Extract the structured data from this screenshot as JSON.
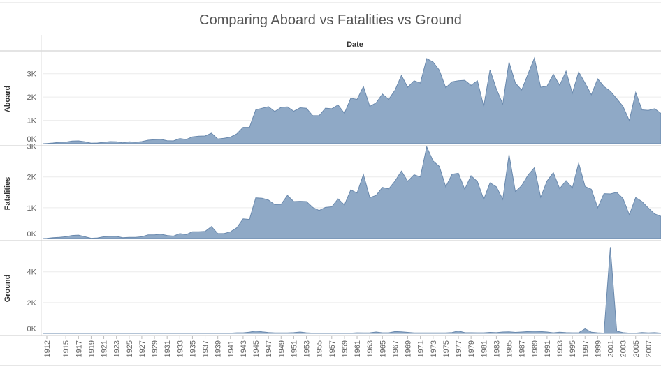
{
  "page": {
    "title": "Comparing Aboard vs Fatalities vs Ground"
  },
  "colors": {
    "area_fill": "#8fa9c6",
    "area_stroke": "#6a89ad",
    "grid": "#ececec",
    "divider": "#c8c8c8"
  },
  "chart_data": {
    "type": "area",
    "title": "Comparing Aboard vs Fatalities vs Ground",
    "column_header": "Date",
    "x_tick_labels": [
      "1912",
      "1915",
      "1917",
      "1919",
      "1921",
      "1923",
      "1925",
      "1927",
      "1929",
      "1931",
      "1933",
      "1935",
      "1937",
      "1939",
      "1941",
      "1943",
      "1945",
      "1947",
      "1949",
      "1951",
      "1953",
      "1955",
      "1957",
      "1959",
      "1961",
      "1963",
      "1965",
      "1967",
      "1969",
      "1971",
      "1973",
      "1975",
      "1977",
      "1979",
      "1981",
      "1983",
      "1985",
      "1987",
      "1989",
      "1991",
      "1993",
      "1995",
      "1997",
      "1999",
      "2001",
      "2003",
      "2005",
      "2007"
    ],
    "x_range": [
      1912,
      2009
    ],
    "legend": "none",
    "grid": "horizontal",
    "panels": [
      {
        "name": "Aboard",
        "ylim": [
          0,
          3800
        ],
        "y_ticks": [
          {
            "value": 0,
            "label": "0K"
          },
          {
            "value": 1000,
            "label": "1K"
          },
          {
            "value": 2000,
            "label": "2K"
          },
          {
            "value": 3000,
            "label": "3K"
          }
        ],
        "x": [
          1908,
          1912,
          1913,
          1914,
          1915,
          1916,
          1917,
          1918,
          1919,
          1920,
          1921,
          1922,
          1923,
          1924,
          1925,
          1926,
          1927,
          1928,
          1929,
          1930,
          1931,
          1932,
          1933,
          1934,
          1935,
          1936,
          1937,
          1938,
          1939,
          1940,
          1941,
          1942,
          1943,
          1944,
          1945,
          1946,
          1947,
          1948,
          1949,
          1950,
          1951,
          1952,
          1953,
          1954,
          1955,
          1956,
          1957,
          1958,
          1959,
          1960,
          1961,
          1962,
          1963,
          1964,
          1965,
          1966,
          1967,
          1968,
          1969,
          1970,
          1971,
          1972,
          1973,
          1974,
          1975,
          1976,
          1977,
          1978,
          1979,
          1980,
          1981,
          1982,
          1983,
          1984,
          1985,
          1986,
          1987,
          1988,
          1989,
          1990,
          1991,
          1992,
          1993,
          1994,
          1995,
          1996,
          1997,
          1998,
          1999,
          2000,
          2001,
          2002,
          2003,
          2004,
          2005,
          2006,
          2007,
          2008,
          2009
        ],
        "values": [
          0,
          10,
          30,
          60,
          70,
          110,
          120,
          80,
          20,
          30,
          60,
          90,
          80,
          40,
          80,
          60,
          90,
          150,
          170,
          190,
          130,
          120,
          220,
          180,
          290,
          320,
          330,
          450,
          200,
          230,
          280,
          420,
          700,
          700,
          1450,
          1520,
          1590,
          1380,
          1560,
          1580,
          1390,
          1540,
          1520,
          1200,
          1200,
          1520,
          1500,
          1660,
          1300,
          1950,
          1900,
          2450,
          1600,
          1750,
          2130,
          1900,
          2300,
          2930,
          2420,
          2700,
          2600,
          3650,
          3500,
          3150,
          2400,
          2650,
          2700,
          2720,
          2500,
          2700,
          1600,
          3170,
          2350,
          1700,
          3500,
          2600,
          2300,
          2990,
          3670,
          2420,
          2470,
          2980,
          2500,
          3110,
          2160,
          3080,
          2600,
          2100,
          2780,
          2450,
          2250,
          1930,
          1600,
          990,
          2200,
          1450,
          1430,
          1500,
          1300
        ]
      },
      {
        "name": "Fatalities",
        "ylim": [
          0,
          2900
        ],
        "y_ticks": [
          {
            "value": 0,
            "label": "0K"
          },
          {
            "value": 1000,
            "label": "1K"
          },
          {
            "value": 2000,
            "label": "2K"
          },
          {
            "value": 3000,
            "label": "3K"
          }
        ],
        "x": [
          1908,
          1912,
          1913,
          1914,
          1915,
          1916,
          1917,
          1918,
          1919,
          1920,
          1921,
          1922,
          1923,
          1924,
          1925,
          1926,
          1927,
          1928,
          1929,
          1930,
          1931,
          1932,
          1933,
          1934,
          1935,
          1936,
          1937,
          1938,
          1939,
          1940,
          1941,
          1942,
          1943,
          1944,
          1945,
          1946,
          1947,
          1948,
          1949,
          1950,
          1951,
          1952,
          1953,
          1954,
          1955,
          1956,
          1957,
          1958,
          1959,
          1960,
          1961,
          1962,
          1963,
          1964,
          1965,
          1966,
          1967,
          1968,
          1969,
          1970,
          1971,
          1972,
          1973,
          1974,
          1975,
          1976,
          1977,
          1978,
          1979,
          1980,
          1981,
          1982,
          1983,
          1984,
          1985,
          1986,
          1987,
          1988,
          1989,
          1990,
          1991,
          1992,
          1993,
          1994,
          1995,
          1996,
          1997,
          1998,
          1999,
          2000,
          2001,
          2002,
          2003,
          2004,
          2005,
          2006,
          2007,
          2008,
          2009
        ],
        "values": [
          0,
          5,
          30,
          40,
          60,
          100,
          110,
          60,
          10,
          20,
          60,
          70,
          70,
          30,
          40,
          40,
          60,
          120,
          120,
          140,
          100,
          80,
          160,
          130,
          220,
          220,
          230,
          390,
          160,
          160,
          220,
          350,
          640,
          620,
          1320,
          1310,
          1250,
          1100,
          1110,
          1400,
          1200,
          1210,
          1200,
          1010,
          910,
          1010,
          1030,
          1290,
          1090,
          1580,
          1480,
          2080,
          1330,
          1400,
          1660,
          1610,
          1870,
          2190,
          1860,
          2070,
          2000,
          2980,
          2520,
          2340,
          1680,
          2090,
          2120,
          1600,
          2040,
          1850,
          1270,
          1810,
          1680,
          1270,
          2730,
          1520,
          1720,
          2060,
          2300,
          1340,
          1870,
          2140,
          1620,
          1880,
          1640,
          2450,
          1690,
          1600,
          1000,
          1460,
          1450,
          1500,
          1300,
          770,
          1330,
          1200,
          990,
          800,
          720
        ]
      },
      {
        "name": "Ground",
        "ylim": [
          0,
          5800
        ],
        "y_ticks": [
          {
            "value": 0,
            "label": "0K"
          },
          {
            "value": 2000,
            "label": "2K"
          },
          {
            "value": 4000,
            "label": "4K"
          }
        ],
        "x": [
          1908,
          1940,
          1941,
          1942,
          1943,
          1944,
          1945,
          1946,
          1947,
          1948,
          1950,
          1951,
          1952,
          1953,
          1954,
          1960,
          1961,
          1962,
          1963,
          1964,
          1965,
          1966,
          1967,
          1968,
          1969,
          1970,
          1975,
          1976,
          1977,
          1978,
          1980,
          1981,
          1982,
          1983,
          1984,
          1985,
          1986,
          1987,
          1988,
          1989,
          1990,
          1991,
          1992,
          1993,
          1994,
          1995,
          1996,
          1997,
          1998,
          1999,
          2000,
          2001,
          2002,
          2003,
          2004,
          2005,
          2006,
          2007,
          2008,
          2009
        ],
        "values": [
          0,
          0,
          20,
          40,
          40,
          80,
          160,
          100,
          60,
          30,
          30,
          50,
          90,
          40,
          20,
          20,
          40,
          30,
          40,
          90,
          40,
          40,
          120,
          100,
          70,
          30,
          30,
          60,
          160,
          50,
          40,
          40,
          70,
          50,
          90,
          100,
          70,
          90,
          120,
          150,
          120,
          90,
          40,
          80,
          50,
          40,
          40,
          300,
          80,
          40,
          20,
          5600,
          150,
          50,
          20,
          20,
          60,
          30,
          50,
          20
        ]
      }
    ]
  }
}
